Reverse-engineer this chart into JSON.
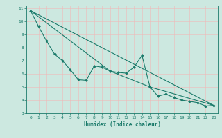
{
  "title": "",
  "xlabel": "Humidex (Indice chaleur)",
  "bg_color": "#cce8e0",
  "grid_color": "#f0b8b8",
  "line_color": "#1a7a6a",
  "xlim": [
    -0.5,
    23.5
  ],
  "ylim": [
    3,
    11.2
  ],
  "yticks": [
    3,
    4,
    5,
    6,
    7,
    8,
    9,
    10,
    11
  ],
  "xticks": [
    0,
    1,
    2,
    3,
    4,
    5,
    6,
    7,
    8,
    9,
    10,
    11,
    12,
    13,
    14,
    15,
    16,
    17,
    18,
    19,
    20,
    21,
    22,
    23
  ],
  "main_x": [
    0,
    1,
    2,
    3,
    4,
    5,
    6,
    7,
    8,
    9,
    10,
    11,
    12,
    13,
    14,
    15,
    16,
    17,
    18,
    19,
    20,
    21,
    22,
    23
  ],
  "main_y": [
    10.8,
    9.6,
    8.5,
    7.5,
    7.0,
    6.3,
    5.55,
    5.5,
    6.6,
    6.5,
    6.2,
    6.1,
    6.05,
    6.5,
    7.4,
    5.0,
    4.3,
    4.45,
    4.2,
    4.0,
    3.9,
    3.8,
    3.55,
    3.6
  ],
  "line1_x": [
    0,
    23
  ],
  "line1_y": [
    10.8,
    3.6
  ],
  "line2_x": [
    0,
    10,
    15,
    23
  ],
  "line2_y": [
    10.8,
    6.2,
    5.0,
    3.6
  ],
  "marker_x": [
    0,
    1,
    2,
    3,
    4,
    5,
    6,
    7,
    8,
    9,
    10,
    11,
    12,
    13,
    14,
    15,
    16,
    17,
    18,
    19,
    20,
    21,
    22,
    23
  ],
  "marker_y": [
    10.8,
    9.6,
    8.5,
    7.5,
    7.0,
    6.3,
    5.55,
    5.5,
    6.6,
    6.5,
    6.2,
    6.1,
    6.05,
    6.5,
    7.4,
    5.0,
    4.3,
    4.45,
    4.2,
    4.0,
    3.9,
    3.8,
    3.55,
    3.6
  ]
}
